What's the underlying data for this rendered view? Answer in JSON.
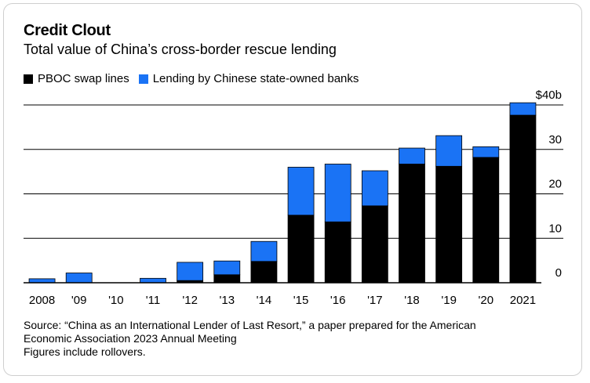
{
  "title": "Credit Clout",
  "subtitle": "Total value of China’s cross-border rescue lending",
  "legend": {
    "pboc": "PBOC swap lines",
    "banks": "Lending by Chinese state-owned banks"
  },
  "source_lines": [
    "Source: “China as an International Lender of Last Resort,” a paper prepared for the American",
    "Economic Association 2023 Annual Meeting",
    "Figures include rollovers."
  ],
  "colors": {
    "pboc": "#000000",
    "banks": "#1a73f5"
  },
  "chart_data": {
    "type": "bar",
    "stacked": true,
    "categories": [
      "2008",
      "'09",
      "'10",
      "'11",
      "'12",
      "'13",
      "'14",
      "'15",
      "'16",
      "'17",
      "'18",
      "'19",
      "'20",
      "2021"
    ],
    "series": [
      {
        "name": "PBOC swap lines",
        "values": [
          0,
          0,
          0,
          0,
          0.5,
          1.8,
          4.8,
          15.2,
          13.7,
          17.3,
          26.7,
          26.2,
          28.2,
          37.7
        ]
      },
      {
        "name": "Lending by Chinese state-owned banks",
        "values": [
          0.9,
          2.2,
          0,
          1.0,
          4.1,
          3.1,
          4.5,
          10.8,
          13.0,
          7.9,
          3.6,
          6.9,
          2.4,
          2.8
        ]
      }
    ],
    "ylim": [
      0,
      40
    ],
    "y_ticks": [
      {
        "value": 0,
        "label": "0"
      },
      {
        "value": 10,
        "label": "10"
      },
      {
        "value": 20,
        "label": "20"
      },
      {
        "value": 30,
        "label": "30"
      },
      {
        "value": 40,
        "label": "$40b"
      }
    ],
    "grid": true,
    "y_axis_position": "right",
    "legend_position": "top-left"
  }
}
